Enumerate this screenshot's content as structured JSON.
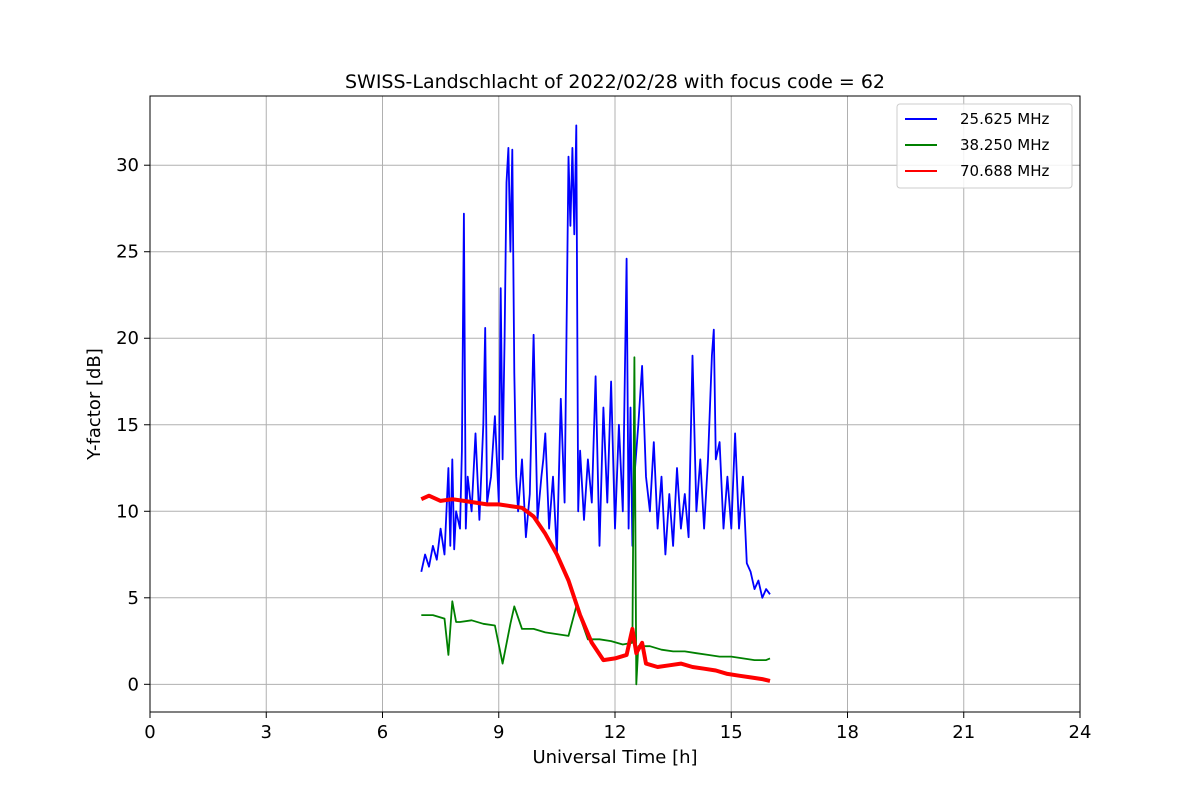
{
  "chart_data": {
    "type": "line",
    "title": "SWISS-Landschlacht of 2022/02/28 with focus code = 62",
    "xlabel": "Universal Time [h]",
    "ylabel": "Y-factor [dB]",
    "xlim": [
      0,
      24
    ],
    "ylim": [
      -1.6,
      34
    ],
    "xticks": [
      0,
      3,
      6,
      9,
      12,
      15,
      18,
      21,
      24
    ],
    "yticks": [
      0,
      5,
      10,
      15,
      20,
      25,
      30
    ],
    "grid": true,
    "legend_position": "top-right",
    "series": [
      {
        "name": "25.625 MHz",
        "color": "#0000ff",
        "x": [
          7.0,
          7.1,
          7.2,
          7.3,
          7.4,
          7.5,
          7.6,
          7.7,
          7.75,
          7.8,
          7.85,
          7.9,
          8.0,
          8.05,
          8.1,
          8.15,
          8.2,
          8.3,
          8.4,
          8.5,
          8.6,
          8.65,
          8.7,
          8.8,
          8.9,
          9.0,
          9.05,
          9.1,
          9.15,
          9.2,
          9.25,
          9.3,
          9.35,
          9.4,
          9.45,
          9.5,
          9.6,
          9.7,
          9.8,
          9.9,
          10.0,
          10.1,
          10.15,
          10.2,
          10.3,
          10.4,
          10.5,
          10.6,
          10.7,
          10.8,
          10.85,
          10.9,
          10.95,
          11.0,
          11.05,
          11.1,
          11.2,
          11.3,
          11.4,
          11.5,
          11.6,
          11.7,
          11.8,
          11.9,
          12.0,
          12.1,
          12.2,
          12.3,
          12.35,
          12.4,
          12.45,
          12.5,
          12.6,
          12.7,
          12.8,
          12.9,
          13.0,
          13.1,
          13.2,
          13.3,
          13.4,
          13.5,
          13.6,
          13.7,
          13.8,
          13.9,
          14.0,
          14.1,
          14.2,
          14.3,
          14.4,
          14.5,
          14.55,
          14.6,
          14.7,
          14.8,
          14.9,
          15.0,
          15.1,
          15.2,
          15.3,
          15.4,
          15.5,
          15.6,
          15.7,
          15.8,
          15.9,
          16.0
        ],
        "values": [
          6.5,
          7.5,
          6.8,
          8.0,
          7.2,
          9.0,
          7.5,
          12.5,
          8.0,
          13.0,
          7.8,
          10.0,
          9.0,
          13.5,
          27.2,
          9.0,
          12.0,
          10.0,
          14.5,
          9.5,
          15.0,
          20.6,
          10.5,
          12.0,
          15.5,
          10.5,
          22.9,
          13.0,
          20.0,
          29.0,
          31.0,
          25.0,
          30.9,
          18.0,
          12.0,
          10.0,
          13.0,
          8.5,
          11.0,
          20.2,
          9.5,
          12.0,
          13.0,
          14.5,
          9.0,
          12.0,
          7.5,
          16.5,
          10.5,
          30.5,
          26.5,
          31.0,
          26.0,
          32.3,
          10.0,
          13.5,
          9.5,
          13.0,
          10.5,
          17.8,
          8.0,
          16.0,
          10.5,
          17.5,
          9.0,
          15.0,
          10.0,
          24.6,
          9.0,
          16.0,
          8.0,
          12.0,
          15.0,
          18.4,
          12.0,
          10.0,
          14.0,
          9.0,
          12.0,
          7.5,
          11.0,
          8.0,
          12.5,
          9.0,
          11.0,
          8.5,
          19.0,
          10.0,
          13.0,
          9.0,
          13.0,
          19.0,
          20.5,
          13.0,
          14.0,
          9.0,
          12.0,
          9.0,
          14.5,
          9.0,
          12.0,
          7.0,
          6.5,
          5.5,
          6.0,
          5.0,
          5.5,
          5.2
        ]
      },
      {
        "name": "38.250 MHz",
        "color": "#008000",
        "x": [
          7.0,
          7.3,
          7.6,
          7.7,
          7.8,
          7.9,
          8.0,
          8.3,
          8.6,
          8.9,
          9.1,
          9.3,
          9.4,
          9.6,
          9.9,
          10.2,
          10.5,
          10.8,
          11.0,
          11.3,
          11.6,
          11.9,
          12.2,
          12.45,
          12.5,
          12.55,
          12.6,
          12.9,
          13.2,
          13.5,
          13.8,
          14.1,
          14.4,
          14.7,
          15.0,
          15.3,
          15.6,
          15.9,
          16.0
        ],
        "values": [
          4.0,
          4.0,
          3.8,
          1.7,
          4.8,
          3.6,
          3.6,
          3.7,
          3.5,
          3.4,
          1.2,
          3.5,
          4.5,
          3.2,
          3.2,
          3.0,
          2.9,
          2.8,
          4.5,
          2.6,
          2.6,
          2.5,
          2.3,
          2.4,
          18.9,
          0.0,
          2.2,
          2.2,
          2.0,
          1.9,
          1.9,
          1.8,
          1.7,
          1.6,
          1.6,
          1.5,
          1.4,
          1.4,
          1.5
        ]
      },
      {
        "name": "70.688 MHz",
        "color": "#ff0000",
        "x": [
          7.0,
          7.2,
          7.5,
          7.8,
          8.1,
          8.4,
          8.7,
          9.0,
          9.3,
          9.6,
          9.9,
          10.2,
          10.5,
          10.8,
          11.1,
          11.4,
          11.7,
          12.0,
          12.3,
          12.45,
          12.55,
          12.7,
          12.8,
          13.1,
          13.4,
          13.7,
          14.0,
          14.3,
          14.6,
          14.9,
          15.2,
          15.5,
          15.8,
          16.0
        ],
        "values": [
          10.7,
          10.9,
          10.6,
          10.7,
          10.6,
          10.5,
          10.4,
          10.4,
          10.3,
          10.2,
          9.7,
          8.7,
          7.5,
          6.0,
          4.0,
          2.4,
          1.4,
          1.5,
          1.7,
          3.2,
          1.8,
          2.4,
          1.2,
          1.0,
          1.1,
          1.2,
          1.0,
          0.9,
          0.8,
          0.6,
          0.5,
          0.4,
          0.3,
          0.2
        ]
      }
    ]
  }
}
